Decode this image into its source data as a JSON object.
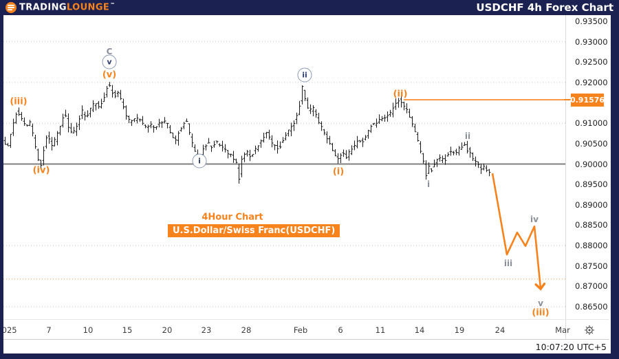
{
  "header": {
    "logo_part1": "TRADING",
    "logo_part2": "LOUNGE",
    "trademark": "™",
    "title": "USDCHF 4h Forex Chart"
  },
  "status_bar": {
    "clock": "10:07:20 UTC+5"
  },
  "chart_data": {
    "type": "ohlc-bar",
    "title": "USDCHF 4h Forex Chart",
    "symbol": "USDCHF",
    "timeframe_label": "4Hour Chart",
    "instrument_label": "U.S.Dollar/Swiss Franc(USDCHF)",
    "ylim": [
      0.865,
      0.935
    ],
    "grid": "dotted-horizontal",
    "y_axis": {
      "last_price": 0.91576,
      "last_price_label": "0.91576",
      "ticks": [
        {
          "label": "0.93500",
          "price": 0.935
        },
        {
          "label": "0.93000",
          "price": 0.93
        },
        {
          "label": "0.92500",
          "price": 0.925
        },
        {
          "label": "0.92000",
          "price": 0.92
        },
        {
          "label": "0.91000",
          "price": 0.91
        },
        {
          "label": "0.90500",
          "price": 0.905
        },
        {
          "label": "0.90000",
          "price": 0.9
        },
        {
          "label": "0.89500",
          "price": 0.895
        },
        {
          "label": "0.89000",
          "price": 0.89
        },
        {
          "label": "0.88500",
          "price": 0.885
        },
        {
          "label": "0.88000",
          "price": 0.88
        },
        {
          "label": "0.87500",
          "price": 0.875
        },
        {
          "label": "0.87000",
          "price": 0.87
        },
        {
          "label": "0.86500",
          "price": 0.865
        }
      ]
    },
    "x_axis": {
      "ticks": [
        {
          "label": "2025",
          "x": 10
        },
        {
          "label": "7",
          "x": 71
        },
        {
          "label": "10",
          "x": 128
        },
        {
          "label": "15",
          "x": 185
        },
        {
          "label": "20",
          "x": 243
        },
        {
          "label": "23",
          "x": 300
        },
        {
          "label": "28",
          "x": 358
        },
        {
          "label": "Feb",
          "x": 437
        },
        {
          "label": "6",
          "x": 495
        },
        {
          "label": "11",
          "x": 553
        },
        {
          "label": "14",
          "x": 610
        },
        {
          "label": "19",
          "x": 668
        },
        {
          "label": "24",
          "x": 727
        },
        {
          "label": "Mar",
          "x": 818
        }
      ]
    },
    "levels": {
      "dotted_gridlines": [
        0.93,
        0.92,
        0.91,
        0.88,
        0.865
      ],
      "orange_dotted_level": 0.8718,
      "round_level": 0.9,
      "resistance": {
        "price": 0.91576,
        "from_x": 587
      }
    },
    "price_path": [
      [
        6,
        0.9058
      ],
      [
        10,
        0.9046
      ],
      [
        14,
        0.9042
      ],
      [
        20,
        0.9082
      ],
      [
        27,
        0.9133
      ],
      [
        33,
        0.9112
      ],
      [
        40,
        0.9088
      ],
      [
        46,
        0.9104
      ],
      [
        52,
        0.9058
      ],
      [
        57,
        0.9014
      ],
      [
        62,
        0.8997
      ],
      [
        68,
        0.9048
      ],
      [
        72,
        0.9072
      ],
      [
        78,
        0.9046
      ],
      [
        84,
        0.9062
      ],
      [
        90,
        0.9092
      ],
      [
        96,
        0.9124
      ],
      [
        102,
        0.9094
      ],
      [
        108,
        0.907
      ],
      [
        116,
        0.9102
      ],
      [
        122,
        0.9128
      ],
      [
        128,
        0.9112
      ],
      [
        136,
        0.914
      ],
      [
        142,
        0.915
      ],
      [
        148,
        0.9138
      ],
      [
        154,
        0.9164
      ],
      [
        160,
        0.9198
      ],
      [
        164,
        0.9178
      ],
      [
        170,
        0.917
      ],
      [
        174,
        0.918
      ],
      [
        180,
        0.915
      ],
      [
        186,
        0.9122
      ],
      [
        192,
        0.91
      ],
      [
        198,
        0.9108
      ],
      [
        204,
        0.9114
      ],
      [
        210,
        0.9098
      ],
      [
        216,
        0.9088
      ],
      [
        222,
        0.9094
      ],
      [
        228,
        0.9086
      ],
      [
        234,
        0.91
      ],
      [
        240,
        0.9108
      ],
      [
        246,
        0.9096
      ],
      [
        252,
        0.907
      ],
      [
        258,
        0.9058
      ],
      [
        264,
        0.9082
      ],
      [
        270,
        0.91
      ],
      [
        274,
        0.9104
      ],
      [
        280,
        0.9058
      ],
      [
        286,
        0.9028
      ],
      [
        292,
        0.9012
      ],
      [
        298,
        0.9036
      ],
      [
        304,
        0.9052
      ],
      [
        310,
        0.9042
      ],
      [
        316,
        0.9056
      ],
      [
        322,
        0.9046
      ],
      [
        328,
        0.9038
      ],
      [
        334,
        0.9028
      ],
      [
        340,
        0.902
      ],
      [
        346,
        0.9004
      ],
      [
        350,
        0.8963
      ],
      [
        354,
        0.9012
      ],
      [
        360,
        0.903
      ],
      [
        366,
        0.902
      ],
      [
        372,
        0.9032
      ],
      [
        378,
        0.9046
      ],
      [
        384,
        0.9062
      ],
      [
        390,
        0.908
      ],
      [
        396,
        0.9056
      ],
      [
        402,
        0.9044
      ],
      [
        408,
        0.9038
      ],
      [
        414,
        0.9062
      ],
      [
        420,
        0.9078
      ],
      [
        426,
        0.9092
      ],
      [
        432,
        0.9108
      ],
      [
        437,
        0.9128
      ],
      [
        442,
        0.9192
      ],
      [
        447,
        0.9158
      ],
      [
        452,
        0.9128
      ],
      [
        458,
        0.9138
      ],
      [
        464,
        0.911
      ],
      [
        470,
        0.9088
      ],
      [
        476,
        0.9066
      ],
      [
        482,
        0.905
      ],
      [
        488,
        0.903
      ],
      [
        492,
        0.9012
      ],
      [
        497,
        0.9022
      ],
      [
        502,
        0.903
      ],
      [
        506,
        0.9016
      ],
      [
        512,
        0.9032
      ],
      [
        518,
        0.9045
      ],
      [
        524,
        0.9062
      ],
      [
        530,
        0.9055
      ],
      [
        536,
        0.9072
      ],
      [
        542,
        0.9095
      ],
      [
        548,
        0.91
      ],
      [
        554,
        0.9106
      ],
      [
        560,
        0.911
      ],
      [
        566,
        0.9116
      ],
      [
        572,
        0.9128
      ],
      [
        578,
        0.9145
      ],
      [
        583,
        0.9155
      ],
      [
        588,
        0.9148
      ],
      [
        592,
        0.9136
      ],
      [
        597,
        0.912
      ],
      [
        602,
        0.9096
      ],
      [
        607,
        0.9076
      ],
      [
        612,
        0.9042
      ],
      [
        617,
        0.9012
      ],
      [
        622,
        0.8972
      ],
      [
        626,
        0.8992
      ],
      [
        630,
        0.8986
      ],
      [
        636,
        0.9004
      ],
      [
        642,
        0.9014
      ],
      [
        648,
        0.9008
      ],
      [
        654,
        0.9024
      ],
      [
        660,
        0.9034
      ],
      [
        666,
        0.9028
      ],
      [
        672,
        0.904
      ],
      [
        677,
        0.9048
      ],
      [
        682,
        0.9036
      ],
      [
        688,
        0.902
      ],
      [
        694,
        0.9006
      ],
      [
        700,
        0.899
      ],
      [
        706,
        0.8994
      ],
      [
        711,
        0.8984
      ]
    ],
    "wave_labels": [
      {
        "text": "(iii)",
        "x": 27,
        "price": 0.9153,
        "style": "orange"
      },
      {
        "text": "C",
        "x": 159,
        "price": 0.9276,
        "style": "gray"
      },
      {
        "text": "v",
        "x": 159,
        "price": 0.9251,
        "style": "circled"
      },
      {
        "text": "(v)",
        "x": 159,
        "price": 0.9218,
        "style": "orange"
      },
      {
        "text": "(iv)",
        "x": 60,
        "price": 0.8984,
        "style": "orange"
      },
      {
        "text": "i",
        "x": 290,
        "price": 0.9008,
        "style": "circled"
      },
      {
        "text": "ii",
        "x": 443,
        "price": 0.9218,
        "style": "circled"
      },
      {
        "text": "(i)",
        "x": 492,
        "price": 0.898,
        "style": "orange"
      },
      {
        "text": "(ii)",
        "x": 582,
        "price": 0.9172,
        "style": "orange"
      },
      {
        "text": "i",
        "x": 623,
        "price": 0.8951,
        "style": "gray"
      },
      {
        "text": "ii",
        "x": 680,
        "price": 0.9068,
        "style": "gray"
      },
      {
        "text": "iii",
        "x": 739,
        "price": 0.8757,
        "style": "gray"
      },
      {
        "text": "iv",
        "x": 777,
        "price": 0.8864,
        "style": "gray"
      },
      {
        "text": "v",
        "x": 786,
        "price": 0.8659,
        "style": "gray"
      },
      {
        "text": "(iii)",
        "x": 786,
        "price": 0.8634,
        "style": "orange"
      }
    ],
    "forecast": {
      "points": [
        [
          716,
          0.8977
        ],
        [
          737,
          0.8778
        ],
        [
          752,
          0.8832
        ],
        [
          764,
          0.8799
        ],
        [
          777,
          0.8847
        ],
        [
          786,
          0.8695
        ]
      ]
    },
    "colors": {
      "accent_orange": "#f8821c",
      "navy": "#1b2151",
      "bar": "#191919",
      "grid": "#c3c3c3",
      "orange_grid": "#f7a843",
      "round_level_line": "#7f7f7f",
      "gray_label": "#8a8f99",
      "circle_stroke": "#8b99b4",
      "circled_text": "#2e3d6e"
    }
  }
}
